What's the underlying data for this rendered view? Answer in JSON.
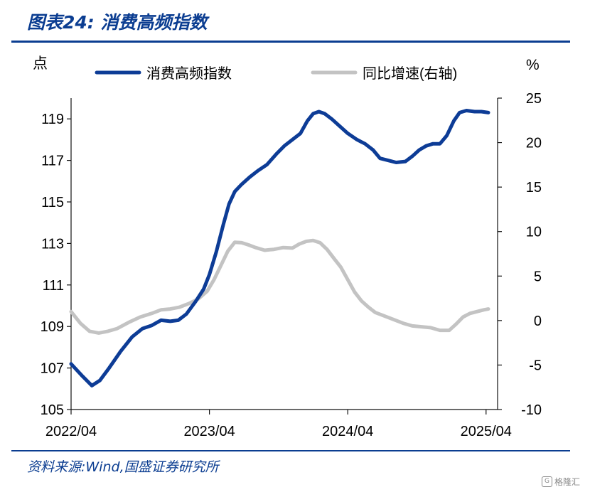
{
  "header": {
    "title": "图表24:  消费高频指数"
  },
  "footer": {
    "source": "资料来源:Wind,国盛证券研究所"
  },
  "watermark": {
    "text": "格隆汇"
  },
  "chart_data": {
    "type": "line",
    "left_axis": {
      "unit": "点",
      "range": [
        105,
        120
      ],
      "ticks": [
        "105",
        "107",
        "109",
        "111",
        "113",
        "115",
        "117",
        "119"
      ]
    },
    "right_axis": {
      "unit": "%",
      "range": [
        -10,
        25
      ],
      "ticks": [
        "-10",
        "-5",
        "0",
        "5",
        "10",
        "15",
        "20",
        "25"
      ]
    },
    "x_ticks": [
      {
        "value": 0,
        "label": "2022/04"
      },
      {
        "value": 12,
        "label": "2023/04"
      },
      {
        "value": 24,
        "label": "2024/04"
      },
      {
        "value": 36,
        "label": "2025/04"
      }
    ],
    "x_range": [
      0,
      37
    ],
    "series": [
      {
        "name": "消费高频指数",
        "axis": "left",
        "color": "#0d3c96",
        "points": [
          [
            0,
            107.2
          ],
          [
            1,
            106.6
          ],
          [
            1.8,
            106.15
          ],
          [
            2.5,
            106.4
          ],
          [
            3.3,
            107.0
          ],
          [
            4.3,
            107.8
          ],
          [
            5.3,
            108.5
          ],
          [
            6.2,
            108.9
          ],
          [
            7.0,
            109.05
          ],
          [
            7.8,
            109.3
          ],
          [
            8.6,
            109.25
          ],
          [
            9.3,
            109.3
          ],
          [
            10.0,
            109.6
          ],
          [
            10.8,
            110.2
          ],
          [
            11.5,
            110.8
          ],
          [
            12.0,
            111.5
          ],
          [
            12.6,
            112.6
          ],
          [
            13.2,
            113.9
          ],
          [
            13.7,
            114.9
          ],
          [
            14.2,
            115.5
          ],
          [
            14.8,
            115.85
          ],
          [
            15.5,
            116.2
          ],
          [
            16.2,
            116.5
          ],
          [
            17.0,
            116.8
          ],
          [
            17.8,
            117.3
          ],
          [
            18.5,
            117.7
          ],
          [
            19.2,
            118.0
          ],
          [
            19.9,
            118.3
          ],
          [
            20.5,
            118.9
          ],
          [
            21.0,
            119.25
          ],
          [
            21.5,
            119.35
          ],
          [
            22.0,
            119.25
          ],
          [
            22.6,
            119.0
          ],
          [
            23.3,
            118.65
          ],
          [
            24.0,
            118.3
          ],
          [
            24.8,
            118.0
          ],
          [
            25.5,
            117.8
          ],
          [
            26.2,
            117.5
          ],
          [
            26.8,
            117.1
          ],
          [
            27.5,
            117.0
          ],
          [
            28.2,
            116.9
          ],
          [
            29.0,
            116.95
          ],
          [
            29.6,
            117.2
          ],
          [
            30.2,
            117.5
          ],
          [
            30.8,
            117.7
          ],
          [
            31.4,
            117.8
          ],
          [
            32.0,
            117.8
          ],
          [
            32.6,
            118.2
          ],
          [
            33.2,
            118.9
          ],
          [
            33.7,
            119.3
          ],
          [
            34.3,
            119.4
          ],
          [
            35.0,
            119.35
          ],
          [
            35.6,
            119.35
          ],
          [
            36.2,
            119.3
          ]
        ]
      },
      {
        "name": "同比增速(右轴)",
        "axis": "right",
        "color": "#c3c3c3",
        "points": [
          [
            0,
            1.0
          ],
          [
            0.8,
            -0.3
          ],
          [
            1.6,
            -1.2
          ],
          [
            2.4,
            -1.4
          ],
          [
            3.2,
            -1.2
          ],
          [
            4.0,
            -0.9
          ],
          [
            5.0,
            -0.2
          ],
          [
            6.0,
            0.4
          ],
          [
            7.0,
            0.8
          ],
          [
            7.8,
            1.2
          ],
          [
            8.6,
            1.3
          ],
          [
            9.4,
            1.5
          ],
          [
            10.2,
            1.9
          ],
          [
            11.0,
            2.4
          ],
          [
            11.8,
            3.3
          ],
          [
            12.4,
            4.6
          ],
          [
            13.0,
            6.2
          ],
          [
            13.6,
            7.8
          ],
          [
            14.2,
            8.8
          ],
          [
            14.8,
            8.75
          ],
          [
            15.4,
            8.5
          ],
          [
            16.0,
            8.2
          ],
          [
            16.8,
            7.9
          ],
          [
            17.6,
            8.0
          ],
          [
            18.4,
            8.2
          ],
          [
            19.2,
            8.15
          ],
          [
            19.8,
            8.6
          ],
          [
            20.4,
            8.9
          ],
          [
            21.0,
            9.0
          ],
          [
            21.6,
            8.75
          ],
          [
            22.2,
            8.0
          ],
          [
            22.8,
            7.0
          ],
          [
            23.4,
            6.0
          ],
          [
            24.0,
            4.6
          ],
          [
            24.6,
            3.2
          ],
          [
            25.2,
            2.2
          ],
          [
            25.8,
            1.5
          ],
          [
            26.4,
            0.9
          ],
          [
            27.2,
            0.5
          ],
          [
            28.0,
            0.1
          ],
          [
            28.8,
            -0.3
          ],
          [
            29.6,
            -0.6
          ],
          [
            30.4,
            -0.7
          ],
          [
            31.2,
            -0.8
          ],
          [
            32.0,
            -1.1
          ],
          [
            32.8,
            -1.1
          ],
          [
            33.4,
            -0.4
          ],
          [
            34.0,
            0.4
          ],
          [
            34.6,
            0.8
          ],
          [
            35.2,
            1.0
          ],
          [
            35.8,
            1.2
          ],
          [
            36.2,
            1.3
          ]
        ]
      }
    ],
    "legend_position": "top",
    "grid": false
  }
}
